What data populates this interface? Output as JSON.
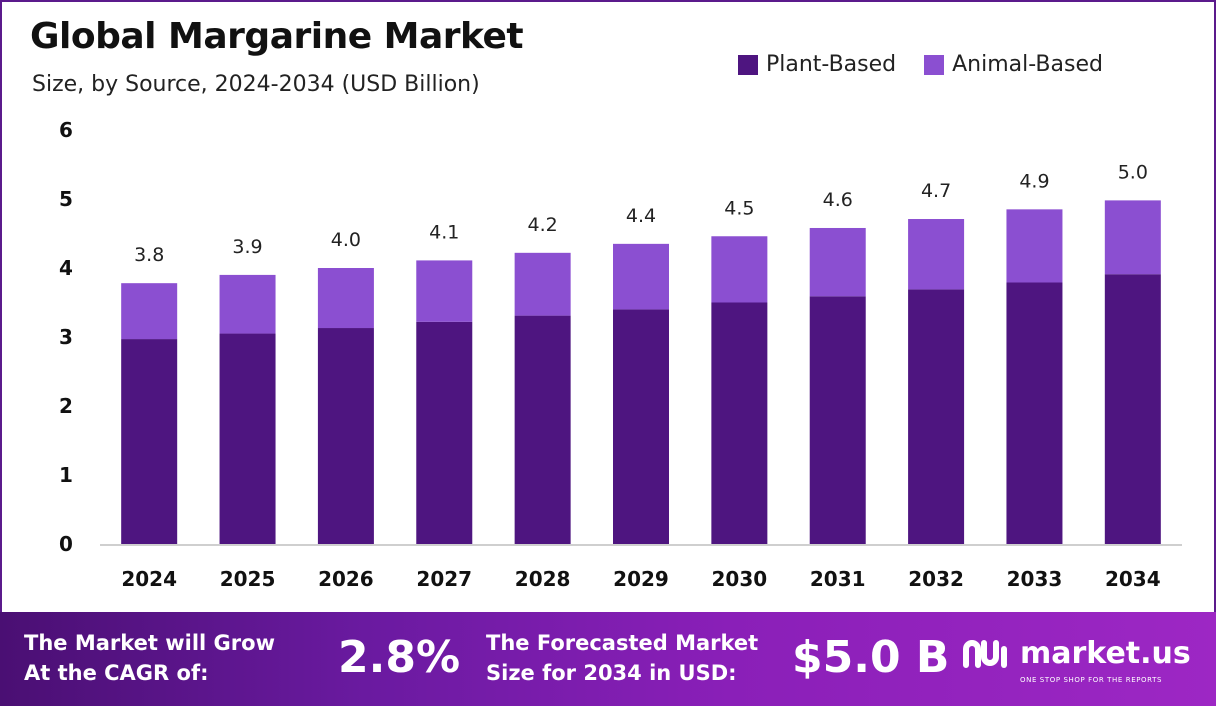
{
  "header": {
    "title": "Global Margarine Market",
    "subtitle": "Size, by Source, 2024-2034 (USD Billion)"
  },
  "legend": [
    {
      "label": "Plant-Based",
      "color": "#4e1580"
    },
    {
      "label": "Animal-Based",
      "color": "#8b4fd1"
    }
  ],
  "chart_data": {
    "type": "bar",
    "stacked": true,
    "categories": [
      "2024",
      "2025",
      "2026",
      "2027",
      "2028",
      "2029",
      "2030",
      "2031",
      "2032",
      "2033",
      "2034"
    ],
    "series": [
      {
        "name": "Plant-Based",
        "color": "#4e1580",
        "values": [
          2.97,
          3.05,
          3.13,
          3.22,
          3.31,
          3.4,
          3.5,
          3.59,
          3.69,
          3.79,
          3.91
        ]
      },
      {
        "name": "Animal-Based",
        "color": "#8b4fd1",
        "values": [
          0.81,
          0.85,
          0.87,
          0.89,
          0.91,
          0.95,
          0.96,
          0.99,
          1.02,
          1.06,
          1.07
        ]
      }
    ],
    "totals_labels": [
      "3.8",
      "3.9",
      "4.0",
      "4.1",
      "4.2",
      "4.4",
      "4.5",
      "4.6",
      "4.7",
      "4.9",
      "5.0"
    ],
    "yticks": [
      "0",
      "1",
      "2",
      "3",
      "4",
      "5",
      "6"
    ],
    "ylim": [
      0,
      6
    ],
    "grid": false,
    "legend_position": "top-right"
  },
  "footer": {
    "cagr_text_line1": "The Market will Grow",
    "cagr_text_line2": "At the CAGR of:",
    "cagr_value": "2.8%",
    "forecast_text_line1": "The Forecasted Market",
    "forecast_text_line2": "Size for 2034 in USD:",
    "forecast_value": "$5.0 B",
    "logo_name": "market.us",
    "logo_tagline": "ONE STOP SHOP FOR THE REPORTS"
  }
}
